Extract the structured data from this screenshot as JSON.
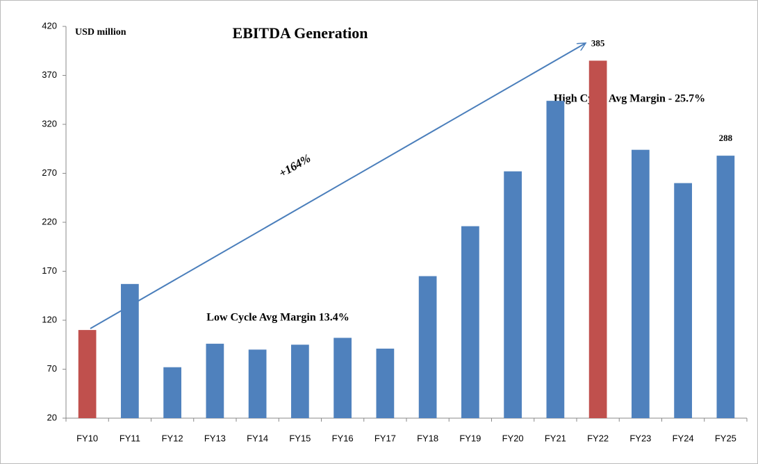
{
  "chart_data": {
    "type": "bar",
    "title": "EBITDA Generation",
    "annotations": [
      "USD million",
      "+164%",
      "Low Cycle Avg Margin  13.4%",
      "High Cycle Avg Margin - 25.7%"
    ],
    "categories": [
      "FY10",
      "FY11",
      "FY12",
      "FY13",
      "FY14",
      "FY15",
      "FY16",
      "FY17",
      "FY18",
      "FY19",
      "FY20",
      "FY21",
      "FY22",
      "FY23",
      "FY24",
      "FY25"
    ],
    "values": [
      110,
      157,
      72,
      96,
      90,
      95,
      102,
      91,
      165,
      216,
      272,
      344,
      385,
      294,
      260,
      288
    ],
    "value_labels": [
      null,
      null,
      null,
      null,
      null,
      null,
      null,
      null,
      null,
      null,
      null,
      null,
      "385",
      null,
      null,
      "288"
    ],
    "colors": [
      "#c0504d",
      "#4f81bd",
      "#4f81bd",
      "#4f81bd",
      "#4f81bd",
      "#4f81bd",
      "#4f81bd",
      "#4f81bd",
      "#4f81bd",
      "#4f81bd",
      "#4f81bd",
      "#4f81bd",
      "#c0504d",
      "#4f81bd",
      "#4f81bd",
      "#4f81bd"
    ],
    "ylim": [
      20,
      420
    ],
    "yticks": [
      20,
      70,
      120,
      170,
      220,
      270,
      320,
      370,
      420
    ],
    "grid": false
  }
}
